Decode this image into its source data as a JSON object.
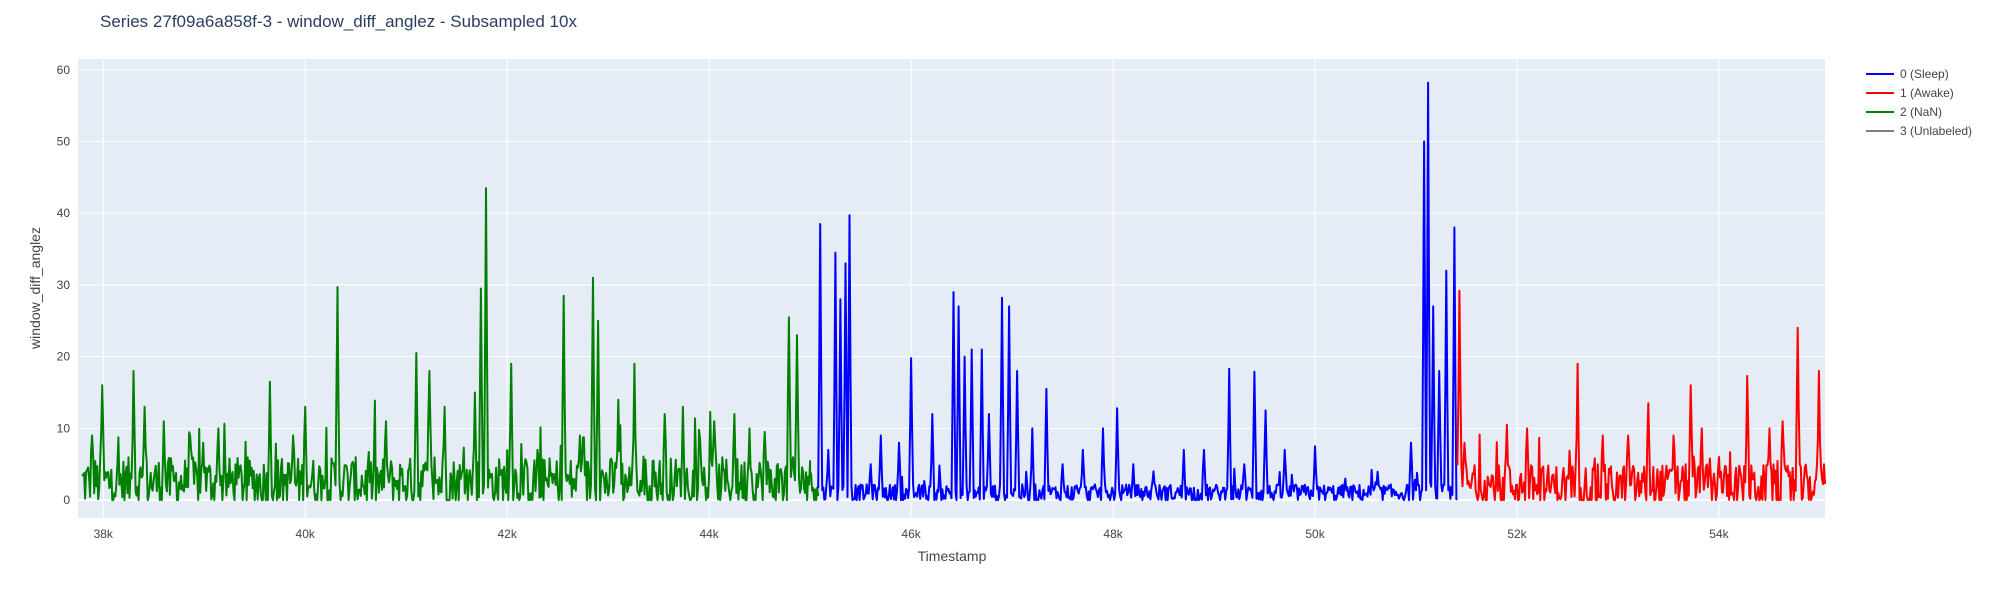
{
  "chart_data": {
    "type": "line",
    "title": "Series 27f09a6a858f-3 - window_diff_anglez - Subsampled 10x",
    "xlabel": "Timestamp",
    "ylabel": "window_diff_anglez",
    "xlim": [
      37750,
      55050
    ],
    "ylim": [
      -2.5,
      61.5
    ],
    "x_ticks": [
      38000,
      40000,
      42000,
      44000,
      46000,
      48000,
      50000,
      52000,
      54000
    ],
    "x_tick_labels": [
      "38k",
      "40k",
      "42k",
      "44k",
      "46k",
      "48k",
      "50k",
      "52k",
      "54k"
    ],
    "y_ticks": [
      0,
      10,
      20,
      30,
      40,
      50,
      60
    ],
    "y_tick_labels": [
      "0",
      "10",
      "20",
      "30",
      "40",
      "50",
      "60"
    ],
    "grid": true,
    "legend_position": "top-right",
    "plot_background": "#e5ecf6",
    "series": [
      {
        "name": "2 (NaN)",
        "color": "#008000",
        "x_range": [
          37790,
          45080
        ],
        "baseline": 2.5,
        "noise": 3.5,
        "peaks": [
          [
            37890,
            9
          ],
          [
            37990,
            16
          ],
          [
            38300,
            18
          ],
          [
            38410,
            13
          ],
          [
            38600,
            11
          ],
          [
            38860,
            9
          ],
          [
            38990,
            8
          ],
          [
            39140,
            10
          ],
          [
            39650,
            16.5
          ],
          [
            39880,
            9
          ],
          [
            40000,
            13
          ],
          [
            40320,
            29.7
          ],
          [
            40800,
            11
          ],
          [
            41100,
            20.5
          ],
          [
            41230,
            18
          ],
          [
            41380,
            13
          ],
          [
            41680,
            15
          ],
          [
            41740,
            29.5
          ],
          [
            41790,
            43.5
          ],
          [
            42040,
            19
          ],
          [
            42300,
            7
          ],
          [
            42560,
            28.5
          ],
          [
            42720,
            9
          ],
          [
            42850,
            31
          ],
          [
            42900,
            25
          ],
          [
            43100,
            14
          ],
          [
            43260,
            19
          ],
          [
            43560,
            12
          ],
          [
            43740,
            13
          ],
          [
            44050,
            11
          ],
          [
            44250,
            12
          ],
          [
            44400,
            10
          ],
          [
            44550,
            9.5
          ],
          [
            44790,
            25.5
          ],
          [
            44870,
            23
          ],
          [
            45000,
            4
          ]
        ]
      },
      {
        "name": "0 (Sleep)",
        "color": "#0000ff",
        "x_range": [
          45080,
          51410
        ],
        "baseline": 1.0,
        "noise": 1.2,
        "peaks": [
          [
            45100,
            38.5
          ],
          [
            45180,
            7
          ],
          [
            45250,
            34.5
          ],
          [
            45300,
            28
          ],
          [
            45350,
            33
          ],
          [
            45390,
            39.7
          ],
          [
            45600,
            5
          ],
          [
            45700,
            9
          ],
          [
            45880,
            8
          ],
          [
            46000,
            19.8
          ],
          [
            46210,
            12
          ],
          [
            46420,
            29
          ],
          [
            46470,
            27
          ],
          [
            46530,
            20
          ],
          [
            46600,
            21
          ],
          [
            46700,
            21
          ],
          [
            46770,
            12
          ],
          [
            46900,
            28.2
          ],
          [
            46970,
            27
          ],
          [
            47050,
            18
          ],
          [
            47200,
            10
          ],
          [
            47340,
            15.5
          ],
          [
            47500,
            5
          ],
          [
            47700,
            7
          ],
          [
            47900,
            10
          ],
          [
            48040,
            12.8
          ],
          [
            48200,
            5
          ],
          [
            48400,
            4
          ],
          [
            48700,
            7
          ],
          [
            48900,
            7
          ],
          [
            49150,
            18.3
          ],
          [
            49300,
            5
          ],
          [
            49400,
            17.9
          ],
          [
            49510,
            12.5
          ],
          [
            49700,
            7
          ],
          [
            50000,
            7.5
          ],
          [
            50300,
            3
          ],
          [
            50600,
            2.5
          ],
          [
            50950,
            8
          ],
          [
            51080,
            50
          ],
          [
            51120,
            58.2
          ],
          [
            51170,
            27
          ],
          [
            51230,
            18
          ],
          [
            51300,
            32
          ],
          [
            51380,
            38
          ]
        ]
      },
      {
        "name": "1 (Awake)",
        "color": "#ff0000",
        "x_range": [
          51410,
          55050
        ],
        "baseline": 2.0,
        "noise": 3.0,
        "peaks": [
          [
            51430,
            29.2
          ],
          [
            51480,
            8
          ],
          [
            51900,
            10.5
          ],
          [
            52100,
            10
          ],
          [
            52600,
            19
          ],
          [
            52850,
            9
          ],
          [
            53100,
            9
          ],
          [
            53300,
            13.5
          ],
          [
            53550,
            9
          ],
          [
            53720,
            16
          ],
          [
            53830,
            10
          ],
          [
            54000,
            6
          ],
          [
            54280,
            17.3
          ],
          [
            54500,
            10
          ],
          [
            54630,
            11
          ],
          [
            54780,
            24
          ],
          [
            54990,
            18
          ],
          [
            55040,
            5
          ]
        ]
      },
      {
        "name": "3 (Unlabeled)",
        "color": "#808080",
        "x_range": [],
        "baseline": 0,
        "noise": 0,
        "peaks": []
      }
    ]
  }
}
